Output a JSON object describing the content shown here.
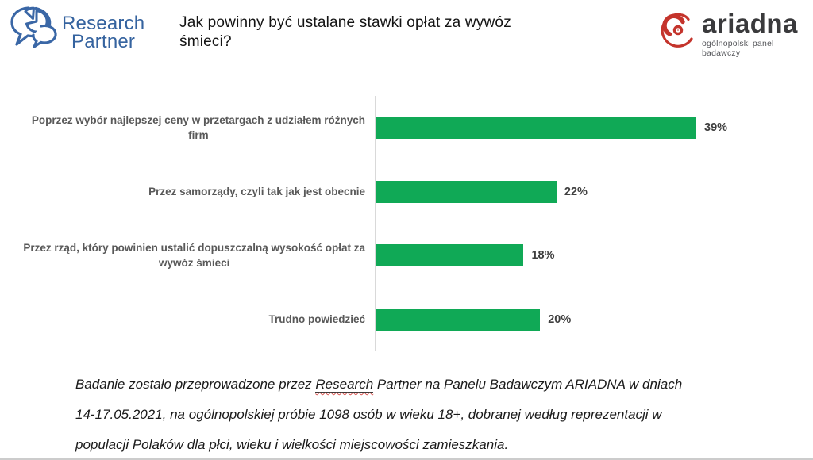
{
  "header": {
    "title": "Jak powinny być ustalane stawki opłat za wywóz śmieci?",
    "research_partner": {
      "line1": "Research",
      "line2": "Partner"
    },
    "ariadna": {
      "name": "ariadna",
      "tagline": "ogólnopolski panel badawczy"
    }
  },
  "chart_data": {
    "type": "bar",
    "orientation": "horizontal",
    "title": "Jak powinny być ustalane stawki opłat za wywóz śmieci?",
    "categories": [
      "Poprzez wybór najlepszej ceny w przetargach z udziałem różnych firm",
      "Przez samorządy, czyli tak jak jest obecnie",
      "Przez rząd, który powinien ustalić dopuszczalną wysokość opłat za wywóz śmieci",
      "Trudno powiedzieć"
    ],
    "label_lines": [
      [
        "Poprzez wybór najlepszej ceny w przetargach z udziałem różnych",
        "firm"
      ],
      [
        "Przez samorządy, czyli tak jak jest obecnie"
      ],
      [
        "Przez rząd, który powinien ustalić dopuszczalną wysokość opłat za",
        "wywóz śmieci"
      ],
      [
        "Trudno powiedzieć"
      ]
    ],
    "values": [
      39,
      22,
      18,
      20
    ],
    "value_labels": [
      "39%",
      "22%",
      "18%",
      "20%"
    ],
    "value_suffix": "%",
    "xlim": [
      0,
      53
    ],
    "grid": false,
    "legend": false,
    "bar_color": "#10a956",
    "axis_color": "#d9d9d9",
    "label_color": "#595959",
    "value_label_color": "#3f3f3f"
  },
  "footer": {
    "line1_before": "Badanie zostało przeprowadzone przez ",
    "line1_underlined": "Research",
    "line1_after": " Partner na Panelu Badawczym ARIADNA w dniach",
    "line2": "14-17.05.2021, na ogólnopolskiej próbie 1098 osób w wieku 18+, dobranej według reprezentacji w",
    "line3": "populacji Polaków dla płci, wieku i wielkości miejscowości zamieszkania."
  }
}
